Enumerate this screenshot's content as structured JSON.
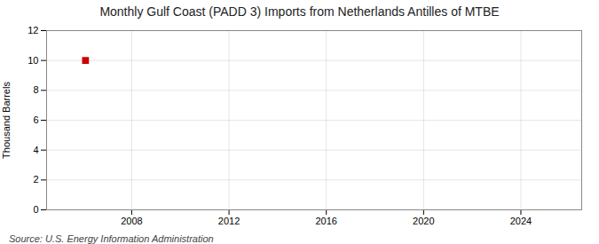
{
  "chart_data": {
    "type": "scatter",
    "title": "Monthly Gulf Coast (PADD 3) Imports from Netherlands Antilles of MTBE",
    "ylabel": "Thousand Barrels",
    "source": "Source: U.S. Energy Information Administration",
    "x": [
      2006.1
    ],
    "values": [
      10.0
    ],
    "color": "#cc0000",
    "marker": "square",
    "xlim": [
      2004.5,
      2026.5
    ],
    "xticks": [
      2008,
      2012,
      2016,
      2020,
      2024
    ],
    "ylim": [
      0,
      12
    ],
    "yticks": [
      0,
      2,
      4,
      6,
      8,
      10,
      12
    ],
    "grid": true
  }
}
